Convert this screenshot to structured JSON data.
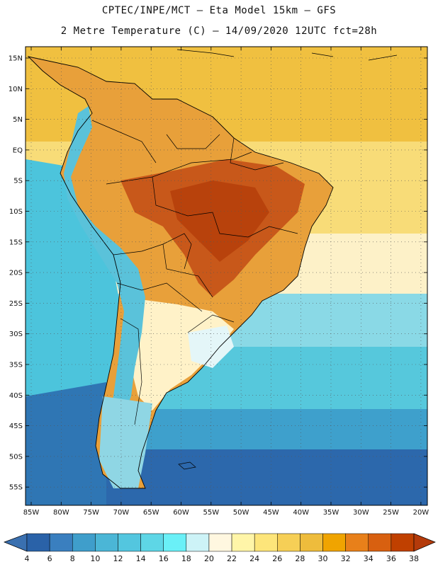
{
  "title_line1": "CPTEC/INPE/MCT –  Eta Model 15km – GFS",
  "title_line2": "2 Metre Temperature (C) – 14/09/2020 12UTC fct=28h",
  "lat_labels": [
    "15N",
    "10N",
    "5N",
    "EQ",
    "5S",
    "10S",
    "15S",
    "20S",
    "25S",
    "30S",
    "35S",
    "40S",
    "45S",
    "50S",
    "55S"
  ],
  "lon_labels": [
    "85W",
    "80W",
    "75W",
    "70W",
    "65W",
    "60W",
    "55W",
    "50W",
    "45W",
    "40W",
    "35W",
    "30W",
    "25W",
    "20W"
  ],
  "colorbar": {
    "labels": [
      "4",
      "6",
      "8",
      "10",
      "12",
      "14",
      "16",
      "18",
      "20",
      "22",
      "24",
      "26",
      "28",
      "30",
      "32",
      "34",
      "36",
      "38"
    ],
    "colors": [
      "#2a62a8",
      "#3a7fbf",
      "#3f9ecb",
      "#4bb6d6",
      "#53c6df",
      "#5ed6e6",
      "#6af0f7",
      "#cdf3f7",
      "#fff7e0",
      "#fff5a8",
      "#fde57a",
      "#f6cf56",
      "#eebc3c",
      "#f0a400",
      "#e8801a",
      "#d86010",
      "#c04000"
    ]
  }
}
